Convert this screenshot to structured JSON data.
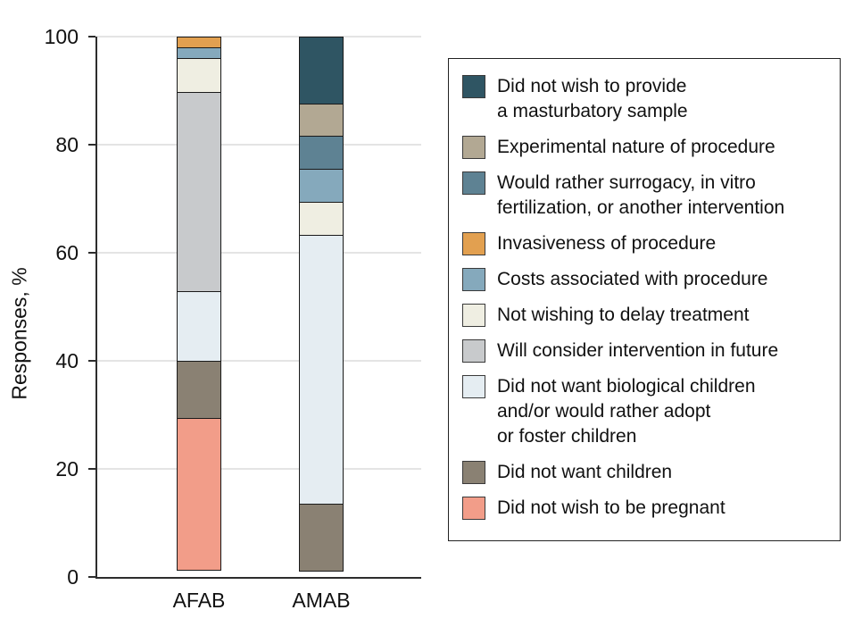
{
  "chart_data": {
    "type": "bar",
    "stacked": true,
    "title": "",
    "ylabel": "Responses, %",
    "xlabel": "",
    "categories": [
      "AFAB",
      "AMAB"
    ],
    "ylim": [
      0,
      100
    ],
    "yticks": [
      0,
      20,
      40,
      60,
      80,
      100
    ],
    "grid": "horizontal",
    "legend_position": "right",
    "series": [
      {
        "name": "Did not wish to be pregnant",
        "color": "#F29D89",
        "values": [
          28.3,
          0
        ]
      },
      {
        "name": "Did not want children",
        "color": "#8A8173",
        "values": [
          10.9,
          12.5
        ]
      },
      {
        "name": "Did not want biological children and/or would rather adopt or foster children",
        "color": "#E5EDF2",
        "values": [
          13.0,
          50.0
        ]
      },
      {
        "name": "Will consider intervention in future",
        "color": "#C8CACC",
        "values": [
          37.0,
          0
        ]
      },
      {
        "name": "Not wishing to delay treatment",
        "color": "#EFEEE2",
        "values": [
          6.5,
          6.25
        ]
      },
      {
        "name": "Costs associated with procedure",
        "color": "#85A9BC",
        "values": [
          2.2,
          6.25
        ]
      },
      {
        "name": "Invasiveness of procedure",
        "color": "#E2A050",
        "values": [
          2.1,
          0
        ]
      },
      {
        "name": "Would rather surrogacy, in vitro fertilization, or another intervention",
        "color": "#5E8293",
        "values": [
          0,
          6.25
        ]
      },
      {
        "name": "Experimental nature of procedure",
        "color": "#B2A893",
        "values": [
          0,
          6.25
        ]
      },
      {
        "name": "Did not wish to provide a masturbatory sample",
        "color": "#2F5563",
        "values": [
          0,
          12.5
        ]
      }
    ]
  },
  "legend": {
    "items": [
      {
        "color": "#2F5563",
        "lines": [
          "Did not wish to provide",
          "a masturbatory sample"
        ]
      },
      {
        "color": "#B2A893",
        "lines": [
          "Experimental nature of procedure"
        ]
      },
      {
        "color": "#5E8293",
        "lines": [
          "Would rather surrogacy, in vitro",
          "fertilization, or another intervention"
        ]
      },
      {
        "color": "#E2A050",
        "lines": [
          "Invasiveness of procedure"
        ]
      },
      {
        "color": "#85A9BC",
        "lines": [
          "Costs associated with procedure"
        ]
      },
      {
        "color": "#EFEEE2",
        "lines": [
          "Not wishing to delay treatment"
        ]
      },
      {
        "color": "#C8CACC",
        "lines": [
          "Will consider intervention in future"
        ]
      },
      {
        "color": "#E5EDF2",
        "lines": [
          "Did not want biological children",
          "and/or would rather adopt",
          "or foster children"
        ]
      },
      {
        "color": "#8A8173",
        "lines": [
          "Did not want children"
        ]
      },
      {
        "color": "#F29D89",
        "lines": [
          "Did not wish to be pregnant"
        ]
      }
    ]
  }
}
